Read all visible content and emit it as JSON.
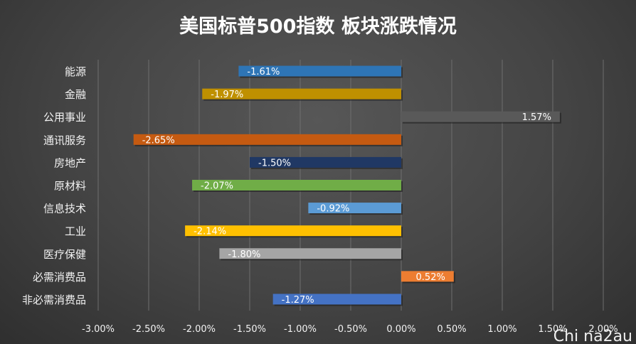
{
  "chart_data": {
    "type": "bar",
    "orientation": "horizontal",
    "title": "美国标普500指数 板块涨跌情况",
    "categories": [
      "能源",
      "金融",
      "公用事业",
      "通讯服务",
      "房地产",
      "原材料",
      "信息技术",
      "工业",
      "医疗保健",
      "必需消费品",
      "非必需消费品"
    ],
    "values": [
      -1.61,
      -1.97,
      1.57,
      -2.65,
      -1.5,
      -2.07,
      -0.92,
      -2.14,
      -1.8,
      0.52,
      -1.27
    ],
    "data_labels": [
      "-1.61%",
      "-1.97%",
      "1.57%",
      "-2.65%",
      "-1.50%",
      "-2.07%",
      "-0.92%",
      "-2.14%",
      "-1.80%",
      "0.52%",
      "-1.27%"
    ],
    "colors": [
      "#2e75b6",
      "#bf9000",
      "#595959",
      "#c55a11",
      "#203864",
      "#70ad47",
      "#5b9bd5",
      "#ffc000",
      "#a5a5a5",
      "#ed7d31",
      "#4472c4"
    ],
    "xlim": [
      -3.0,
      2.0
    ],
    "xticks": [
      -3,
      -2.5,
      -2,
      -1.5,
      -1,
      -0.5,
      0,
      0.5,
      1,
      1.5,
      2
    ],
    "xtick_labels": [
      "-3.00%",
      "-2.50%",
      "-2.00%",
      "-1.50%",
      "-1.00%",
      "-0.50%",
      "0.00%",
      "0.50%",
      "1.00%",
      "1.50%",
      "2.00%"
    ],
    "xlabel": "",
    "ylabel": "",
    "grid": true,
    "legend": false
  },
  "watermark": "Chi na2au"
}
